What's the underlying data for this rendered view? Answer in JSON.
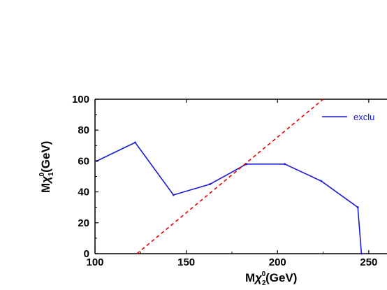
{
  "chart_data": {
    "type": "line",
    "xlabel": {
      "main": "M",
      "sym": "χ",
      "sub": "2",
      "sup": "0",
      "unit": "(GeV)"
    },
    "ylabel": {
      "main": "M",
      "sym": "χ",
      "sub": "1",
      "sup": "0",
      "unit": "(GeV)"
    },
    "xlim": [
      100,
      260
    ],
    "ylim": [
      0,
      100
    ],
    "xticks": [
      100,
      150,
      200,
      250
    ],
    "yticks": [
      0,
      20,
      40,
      60,
      80,
      100
    ],
    "xtick_labels": [
      "100",
      "150",
      "200",
      "250"
    ],
    "ytick_labels": [
      "0",
      "20",
      "40",
      "60",
      "80",
      "100"
    ],
    "grid": false,
    "legend_position": "top-right",
    "series": [
      {
        "name": "exclu",
        "color": "#1a1ad6",
        "style": "solid",
        "x": [
          101,
          122,
          143,
          163,
          183,
          204,
          224,
          244,
          246
        ],
        "y": [
          60,
          72,
          38,
          45,
          58,
          58,
          47,
          30,
          0
        ]
      },
      {
        "color": "#e60000",
        "style": "dashed",
        "x": [
          123,
          225
        ],
        "y": [
          0,
          100
        ]
      }
    ]
  }
}
